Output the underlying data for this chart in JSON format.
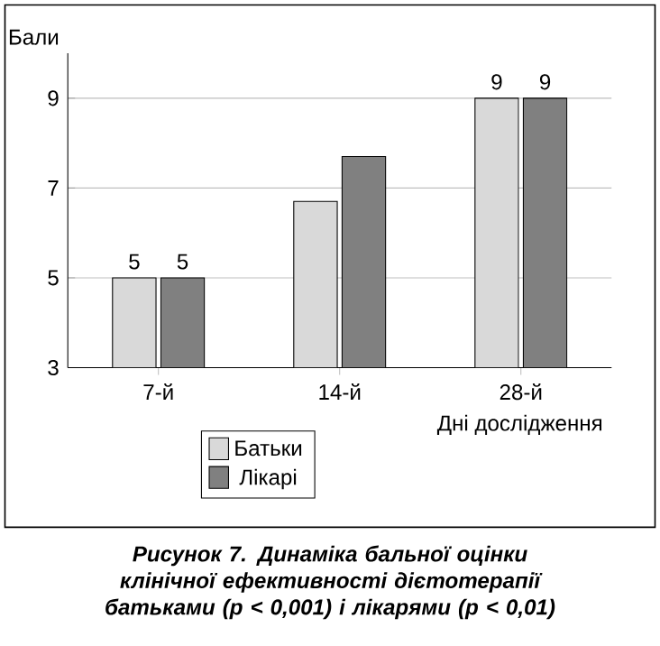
{
  "chart_data": {
    "type": "bar",
    "title": "Рисунок 7. Динаміка бальної оцінки клінічної ефективності дієтотерапії батьками (p < 0,001) і лікарями (p < 0,01)",
    "xlabel": "Дні дослідження",
    "ylabel": "Бали",
    "categories": [
      "7-й",
      "14-й",
      "28-й"
    ],
    "series": [
      {
        "name": "Батьки",
        "color": "#d9d9d9",
        "values": [
          5,
          6.7,
          9
        ],
        "value_labels": [
          "5",
          null,
          "9"
        ]
      },
      {
        "name": "Лікарі",
        "color": "#808080",
        "values": [
          5,
          7.7,
          9
        ],
        "value_labels": [
          "5",
          null,
          "9"
        ]
      }
    ],
    "ylim": [
      3,
      10
    ],
    "yticks": [
      3,
      5,
      7,
      9
    ],
    "grid": "y",
    "legend": "bottom"
  }
}
